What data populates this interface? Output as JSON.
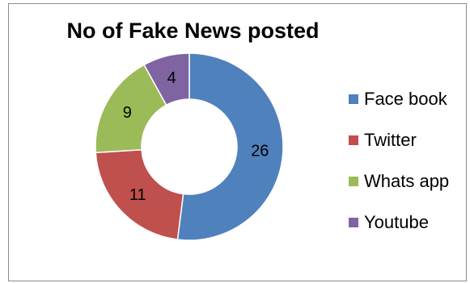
{
  "chart_data": {
    "type": "pie",
    "variant": "donut",
    "title": "No of Fake News posted",
    "categories": [
      "Face book",
      "Twitter",
      "Whats app",
      "Youtube"
    ],
    "values": [
      26,
      11,
      9,
      4
    ],
    "colors": [
      "#4f81bd",
      "#c0504d",
      "#9bbb59",
      "#8064a2"
    ],
    "legend_position": "right"
  }
}
